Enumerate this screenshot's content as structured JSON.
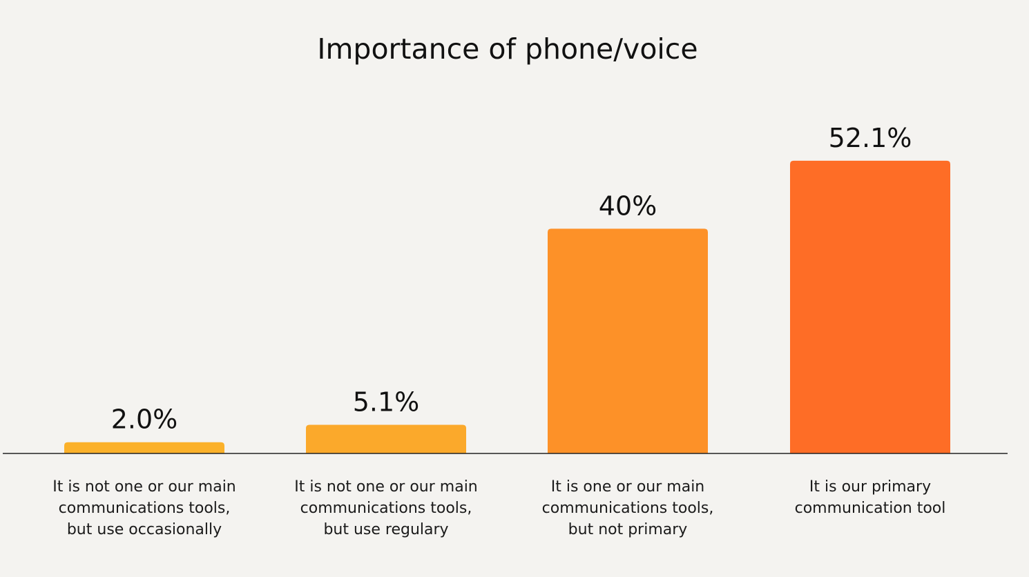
{
  "chart_data": {
    "type": "bar",
    "title": "Importance of phone/voice",
    "xlabel": "",
    "ylabel": "",
    "ylim": [
      0,
      60
    ],
    "grid": false,
    "legend": "none",
    "categories": [
      [
        "It is not one or our main",
        "communications tools,",
        "but use occasionally"
      ],
      [
        "It is not one or our main",
        "communications tools,",
        "but use regulary"
      ],
      [
        "It is one or our main",
        "communications tools,",
        "but not primary"
      ],
      [
        "It is our primary",
        "communication tool"
      ]
    ],
    "values": [
      2.0,
      5.1,
      40,
      52.1
    ],
    "data_labels": [
      "2.0%",
      "5.1%",
      "40%",
      "52.1%"
    ],
    "bar_colors": [
      "#fbb12a",
      "#fba92b",
      "#fd9128",
      "#fe6d26"
    ]
  }
}
